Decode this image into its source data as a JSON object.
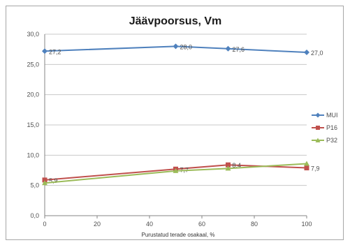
{
  "chart_data": {
    "type": "line",
    "title": "Jäävpoorsus, Vm",
    "xlabel": "Purustatud terade osakaal, %",
    "ylabel": "",
    "xlim": [
      0,
      100
    ],
    "ylim": [
      0,
      30
    ],
    "xticks": [
      0,
      20,
      40,
      60,
      80,
      100
    ],
    "yticks": [
      0,
      5,
      10,
      15,
      20,
      25,
      30
    ],
    "ytick_labels": [
      "0,0",
      "5,0",
      "10,0",
      "15,0",
      "20,0",
      "25,0",
      "30,0"
    ],
    "grid": true,
    "legend": "right",
    "series": [
      {
        "name": "MUI",
        "color": "#4f81bd",
        "marker": "diamond",
        "x": [
          0,
          50,
          70,
          100
        ],
        "y": [
          27.2,
          28.0,
          27.6,
          27.0
        ],
        "labels": [
          "27,2",
          "28,0",
          "27,6",
          "27,0"
        ]
      },
      {
        "name": "P16",
        "color": "#c0504d",
        "marker": "square",
        "x": [
          0,
          50,
          70,
          100
        ],
        "y": [
          5.9,
          7.7,
          8.4,
          7.9
        ],
        "labels": [
          "5,9",
          "7,7",
          "8,4",
          "7,9"
        ]
      },
      {
        "name": "P32",
        "color": "#9bbb59",
        "marker": "triangle",
        "x": [
          0,
          50,
          70,
          100
        ],
        "y": [
          5.4,
          7.4,
          7.8,
          8.6
        ],
        "labels": []
      }
    ]
  }
}
